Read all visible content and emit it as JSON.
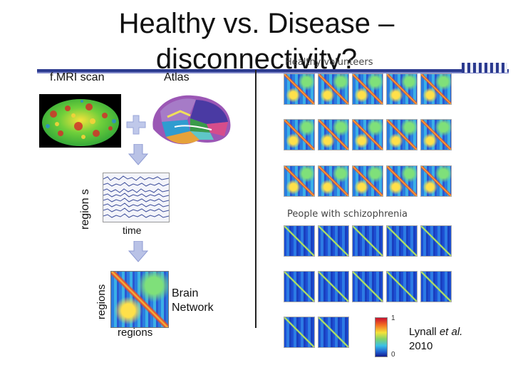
{
  "slide": {
    "title": "Healthy vs. Disease – disconnectivity?",
    "fmri_label": "f.MRI scan",
    "atlas_label": "Atlas",
    "regions_axis_vertical": "region s",
    "time_label": "time",
    "regions_matrix_vertical": "regions",
    "regions_matrix_horizontal": "regions",
    "brain_network_label": "Brain Network",
    "citation_prefix": "Lynall ",
    "citation_etal": "et al.",
    "citation_year": "2010"
  },
  "figure": {
    "healthy_heading": "Healthy volunteers",
    "schizo_heading": "People with schizophrenia",
    "colorbar_max": "1",
    "colorbar_min": "0"
  },
  "colors": {
    "accent_bar": "#2b3a8f",
    "arrow_fill": "#b9c2e6",
    "plus_fill": "#bfc8ea"
  }
}
